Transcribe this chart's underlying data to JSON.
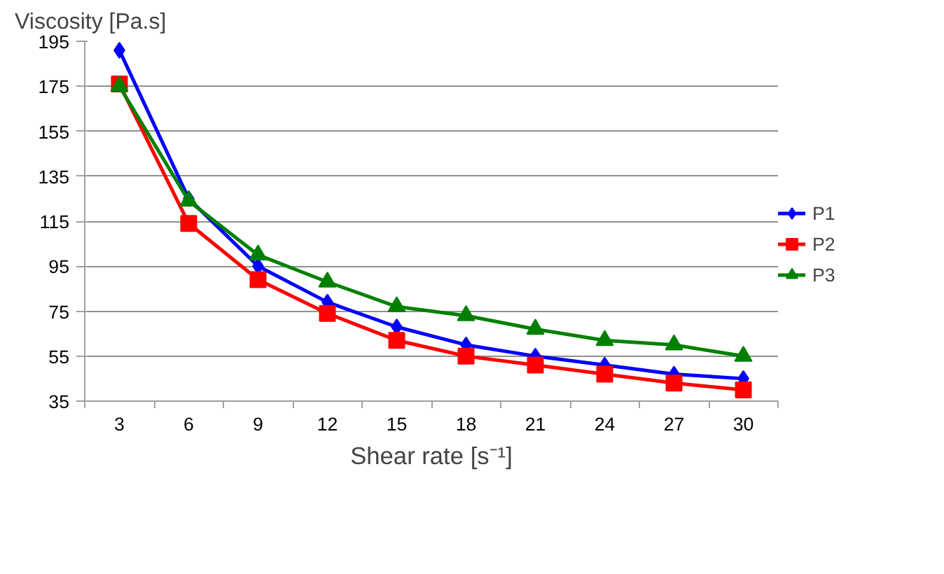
{
  "chart_data": {
    "type": "line",
    "ylabel": "Viscosity [Pa.s]",
    "xlabel": "Shear rate [s⁻¹]",
    "categories": [
      "3",
      "6",
      "9",
      "12",
      "15",
      "18",
      "21",
      "24",
      "27",
      "30"
    ],
    "series": [
      {
        "name": "P1",
        "color": "#0000ff",
        "marker": "diamond",
        "values": [
          191,
          125,
          95,
          79,
          68,
          60,
          55,
          51,
          47,
          45
        ]
      },
      {
        "name": "P2",
        "color": "#ff0000",
        "marker": "square",
        "values": [
          176,
          114,
          89,
          74,
          62,
          55,
          51,
          47,
          43,
          40
        ]
      },
      {
        "name": "P3",
        "color": "#008000",
        "marker": "triangle",
        "values": [
          175,
          124,
          100,
          88,
          77,
          73,
          67,
          62,
          60,
          55
        ]
      }
    ],
    "ylim": [
      35,
      195
    ],
    "yticks": [
      35,
      55,
      75,
      95,
      115,
      135,
      155,
      175,
      195
    ],
    "grid": "y",
    "legend": "right",
    "line_style": "solid"
  }
}
